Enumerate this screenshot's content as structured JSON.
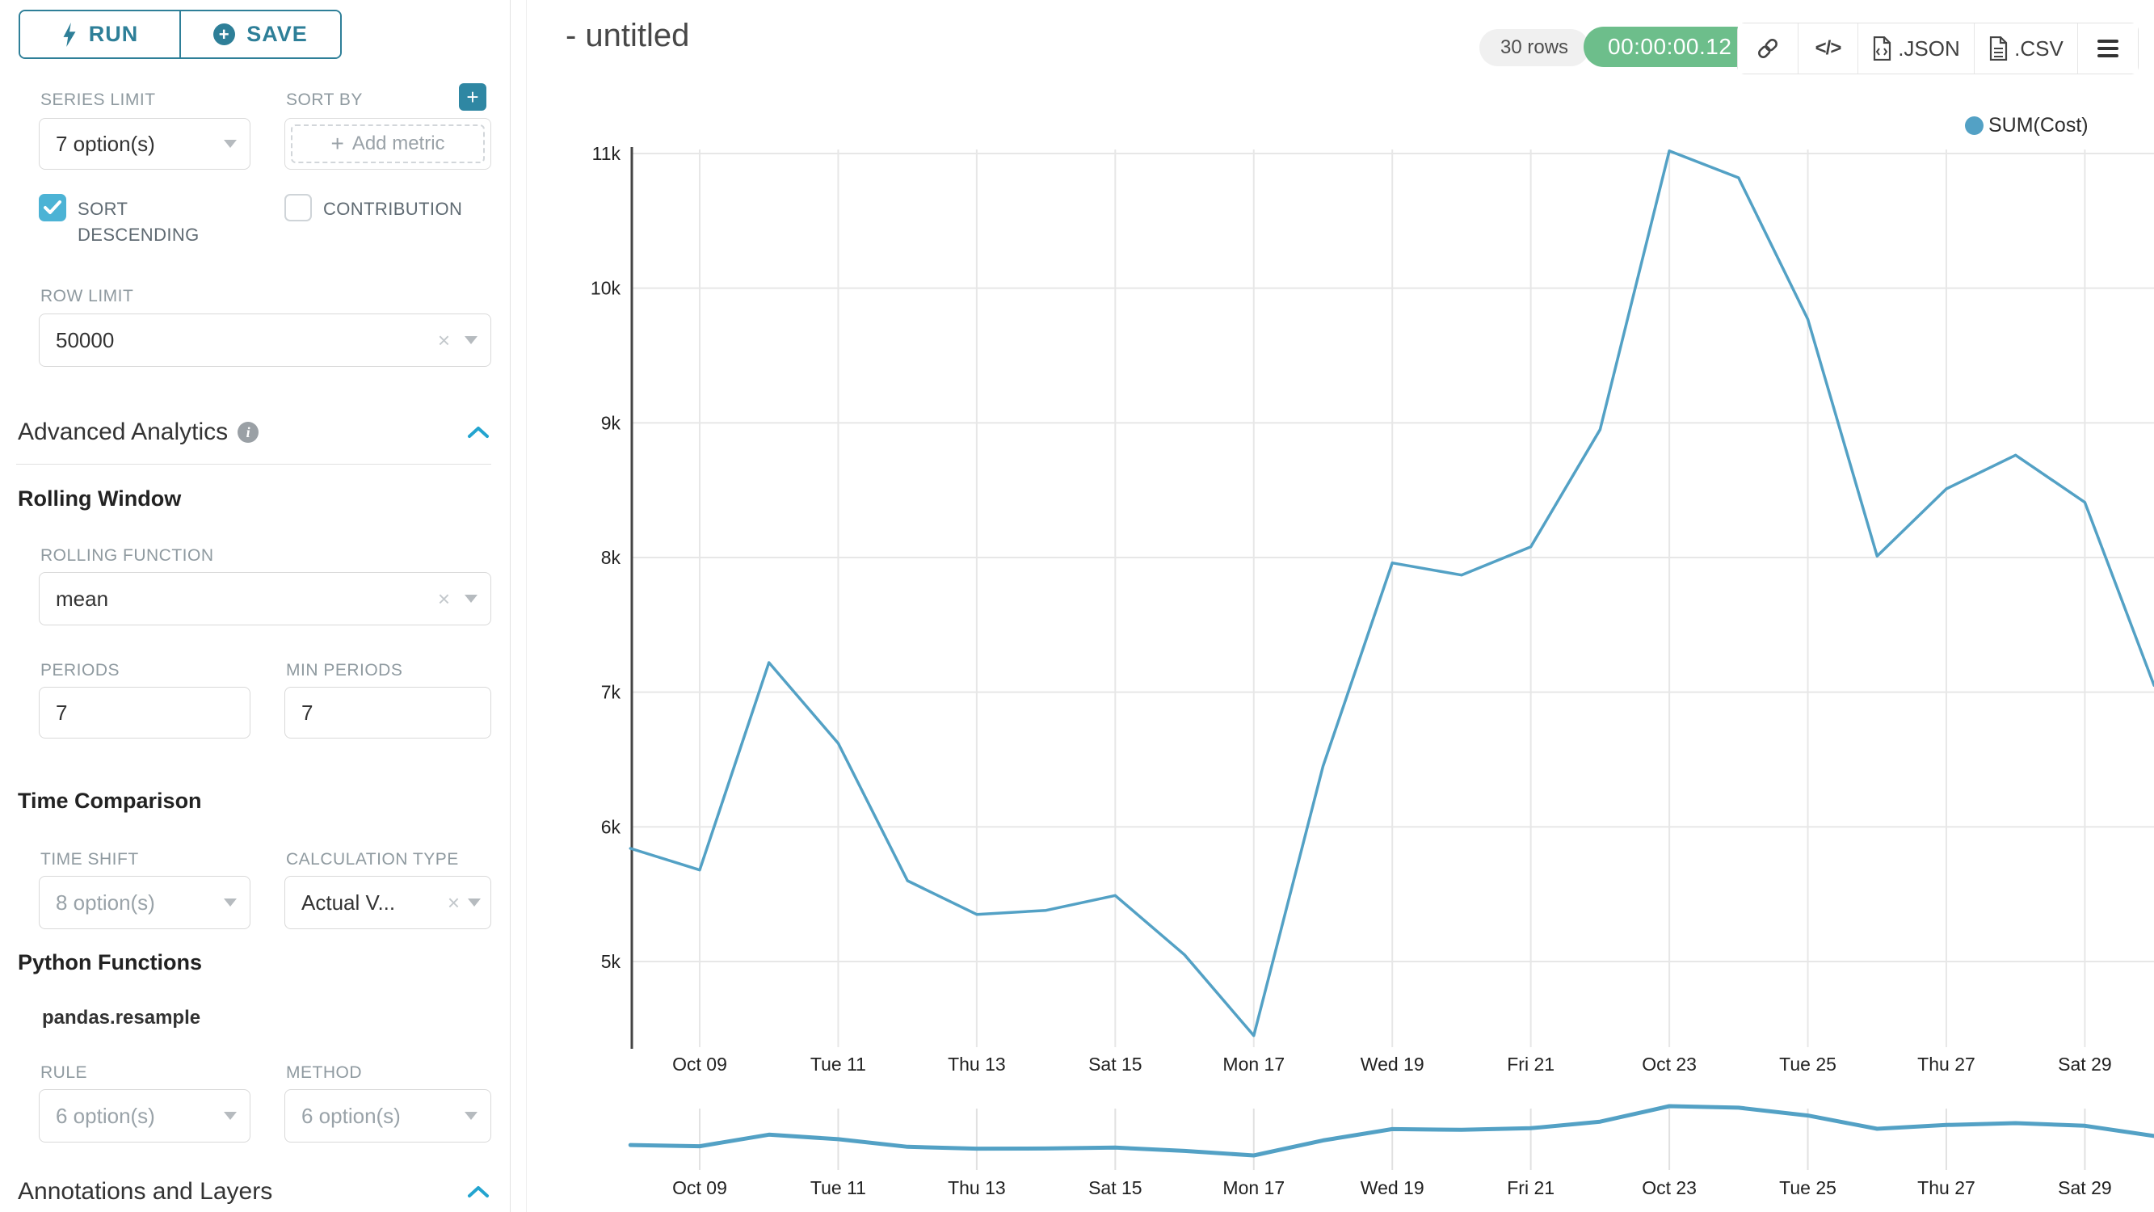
{
  "sidebar": {
    "run_label": "RUN",
    "save_label": "SAVE",
    "series_limit": {
      "label": "SERIES LIMIT",
      "value": "7 option(s)"
    },
    "sort_by": {
      "label": "SORT BY",
      "placeholder": "Add metric"
    },
    "sort_descending": {
      "label": "SORT DESCENDING",
      "checked": true
    },
    "contribution": {
      "label": "CONTRIBUTION",
      "checked": false
    },
    "row_limit": {
      "label": "ROW LIMIT",
      "value": "50000"
    },
    "advanced_analytics": {
      "title": "Advanced Analytics"
    },
    "rolling_window": {
      "title": "Rolling Window"
    },
    "rolling_function": {
      "label": "ROLLING FUNCTION",
      "value": "mean"
    },
    "periods": {
      "label": "PERIODS",
      "value": "7"
    },
    "min_periods": {
      "label": "MIN PERIODS",
      "value": "7"
    },
    "time_comparison": {
      "title": "Time Comparison"
    },
    "time_shift": {
      "label": "TIME SHIFT",
      "value": "8 option(s)"
    },
    "calculation_type": {
      "label": "CALCULATION TYPE",
      "value": "Actual V..."
    },
    "python_functions": {
      "title": "Python Functions",
      "subtitle": "pandas.resample"
    },
    "rule": {
      "label": "RULE",
      "value": "6 option(s)"
    },
    "method": {
      "label": "METHOD",
      "value": "6 option(s)"
    },
    "annotations": {
      "title": "Annotations and Layers"
    }
  },
  "header": {
    "title": "- untitled",
    "rows_badge": "30 rows",
    "duration_badge": "00:00:00.12",
    "export_json_label": ".JSON",
    "export_csv_label": ".CSV"
  },
  "chart_data": {
    "type": "line",
    "title": "",
    "xlabel": "",
    "ylabel": "",
    "legend_position": "top-right",
    "grid": true,
    "has_mini_preview": true,
    "series": [
      {
        "name": "SUM(Cost)",
        "color": "#53a1c5"
      }
    ],
    "x": [
      "Oct 08",
      "Oct 09",
      "Oct 10",
      "Oct 11",
      "Oct 12",
      "Oct 13",
      "Oct 14",
      "Oct 15",
      "Oct 16",
      "Oct 17",
      "Oct 18",
      "Oct 19",
      "Oct 20",
      "Oct 21",
      "Oct 22",
      "Oct 23",
      "Oct 24",
      "Oct 25",
      "Oct 26",
      "Oct 27",
      "Oct 28",
      "Oct 29",
      "Oct 30"
    ],
    "values": [
      5840,
      5680,
      7220,
      6620,
      5600,
      5350,
      5380,
      5490,
      5050,
      4450,
      6450,
      7960,
      7870,
      8080,
      8950,
      11020,
      10820,
      9770,
      8010,
      8510,
      8760,
      8410,
      7050
    ],
    "x_ticks": [
      {
        "index": 1,
        "label": "Oct 09"
      },
      {
        "index": 3,
        "label": "Tue 11"
      },
      {
        "index": 5,
        "label": "Thu 13"
      },
      {
        "index": 7,
        "label": "Sat 15"
      },
      {
        "index": 9,
        "label": "Mon 17"
      },
      {
        "index": 11,
        "label": "Wed 19"
      },
      {
        "index": 13,
        "label": "Fri 21"
      },
      {
        "index": 15,
        "label": "Oct 23"
      },
      {
        "index": 17,
        "label": "Tue 25"
      },
      {
        "index": 19,
        "label": "Thu 27"
      },
      {
        "index": 21,
        "label": "Sat 29"
      }
    ],
    "y_ticks": [
      {
        "value": 5000,
        "label": "5k"
      },
      {
        "value": 6000,
        "label": "6k"
      },
      {
        "value": 7000,
        "label": "7k"
      },
      {
        "value": 8000,
        "label": "8k"
      },
      {
        "value": 9000,
        "label": "9k"
      },
      {
        "value": 10000,
        "label": "10k"
      },
      {
        "value": 11000,
        "label": "11k"
      }
    ],
    "ylim": [
      4400,
      11050
    ]
  }
}
